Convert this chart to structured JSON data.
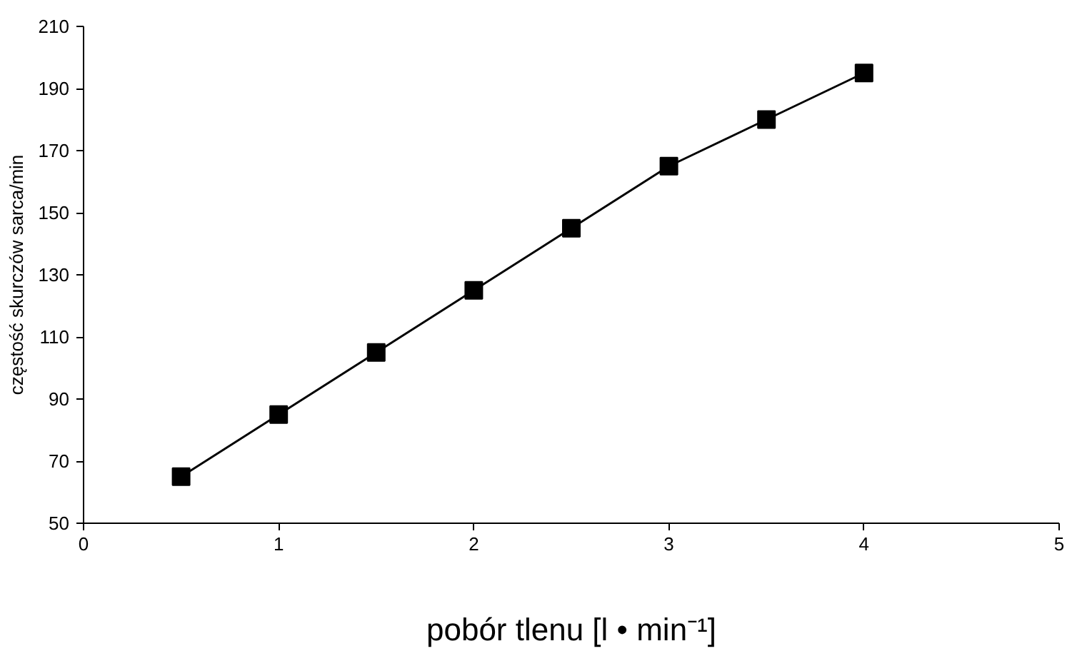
{
  "chart_data": {
    "type": "line",
    "xlabel": "pobór tlenu [l • min⁻¹]",
    "ylabel": "częstość skurczów sarca/min",
    "x": [
      0.5,
      1,
      1.5,
      2,
      2.5,
      3,
      3.5,
      4
    ],
    "series": [
      {
        "color": "#000000",
        "values": [
          65,
          85,
          105,
          125,
          145,
          165,
          180,
          195
        ]
      }
    ],
    "xlim": [
      0,
      5
    ],
    "xticks": [
      0,
      1,
      2,
      3,
      4,
      5
    ],
    "ylim": [
      50,
      210
    ],
    "yticks": [
      50,
      70,
      90,
      110,
      130,
      150,
      170,
      190,
      210
    ],
    "grid": false,
    "marker": "square",
    "line_style": "solid"
  }
}
